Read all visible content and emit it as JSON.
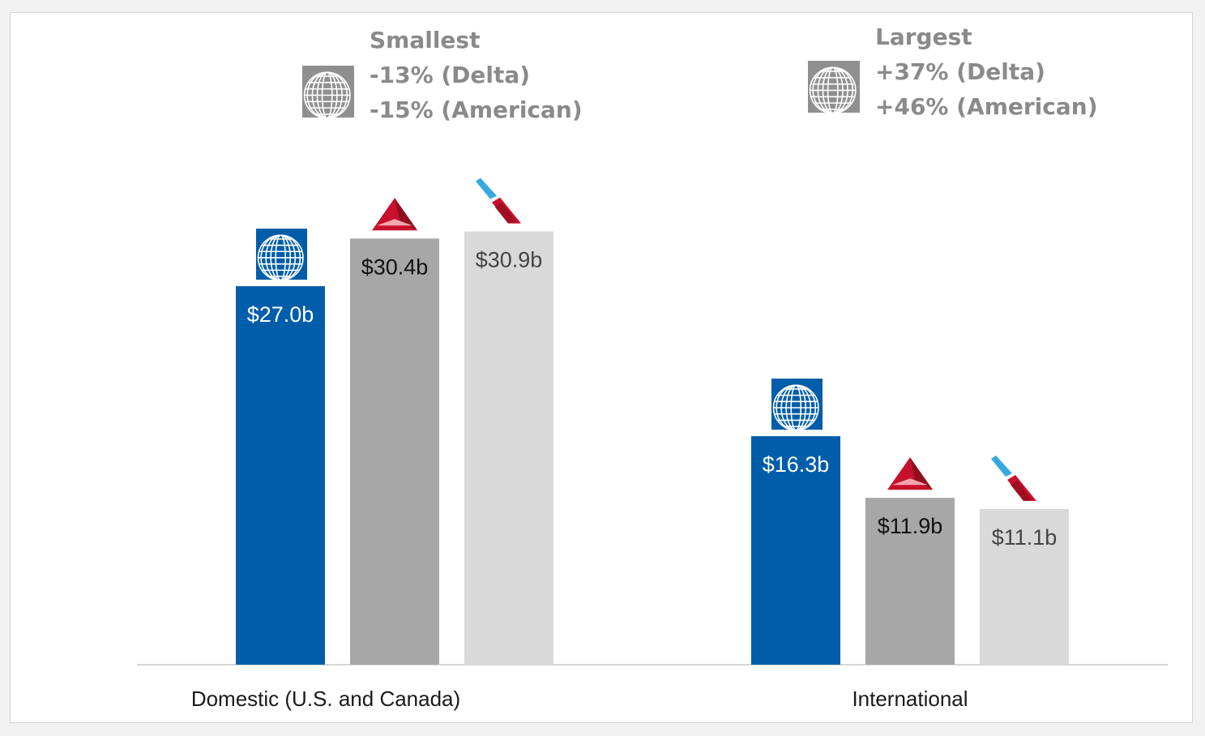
{
  "chart_data": {
    "type": "bar",
    "categories": [
      "Domestic (U.S. and Canada)",
      "International"
    ],
    "series": [
      {
        "values": [
          27.0,
          16.3
        ],
        "labels": [
          "$27.0b",
          "$16.3b"
        ],
        "color": "#005daa",
        "label_color": "#ffffff",
        "logo": "united-globe-logo"
      },
      {
        "values": [
          30.4,
          11.9
        ],
        "labels": [
          "$30.4b",
          "$11.9b"
        ],
        "color": "#a7a7a7",
        "label_color": "#111111",
        "logo": "delta-widget-logo"
      },
      {
        "values": [
          30.9,
          11.1
        ],
        "labels": [
          "$30.9b",
          "$11.1b"
        ],
        "color": "#d9d9d9",
        "label_color": "#444444",
        "logo": "american-flight-symbol-logo"
      }
    ],
    "ylim": [
      0,
      34
    ],
    "grid": false,
    "annotations": [
      {
        "title": "Smallest",
        "lines": [
          "-13% (Delta)",
          "-15% (American)"
        ],
        "category": "Domestic (U.S. and Canada)",
        "logo": "united-globe-logo-gray"
      },
      {
        "title": "Largest",
        "lines": [
          "+37% (Delta)",
          "+46% (American)"
        ],
        "category": "International",
        "logo": "united-globe-logo-gray"
      }
    ]
  },
  "colors": {
    "united_blue": "#005daa",
    "delta_red": "#c8102e",
    "american_red": "#c8102e",
    "american_blue": "#36a9e1",
    "axis": "#c8c8c8",
    "callout_gray": "#8a8a8a"
  }
}
